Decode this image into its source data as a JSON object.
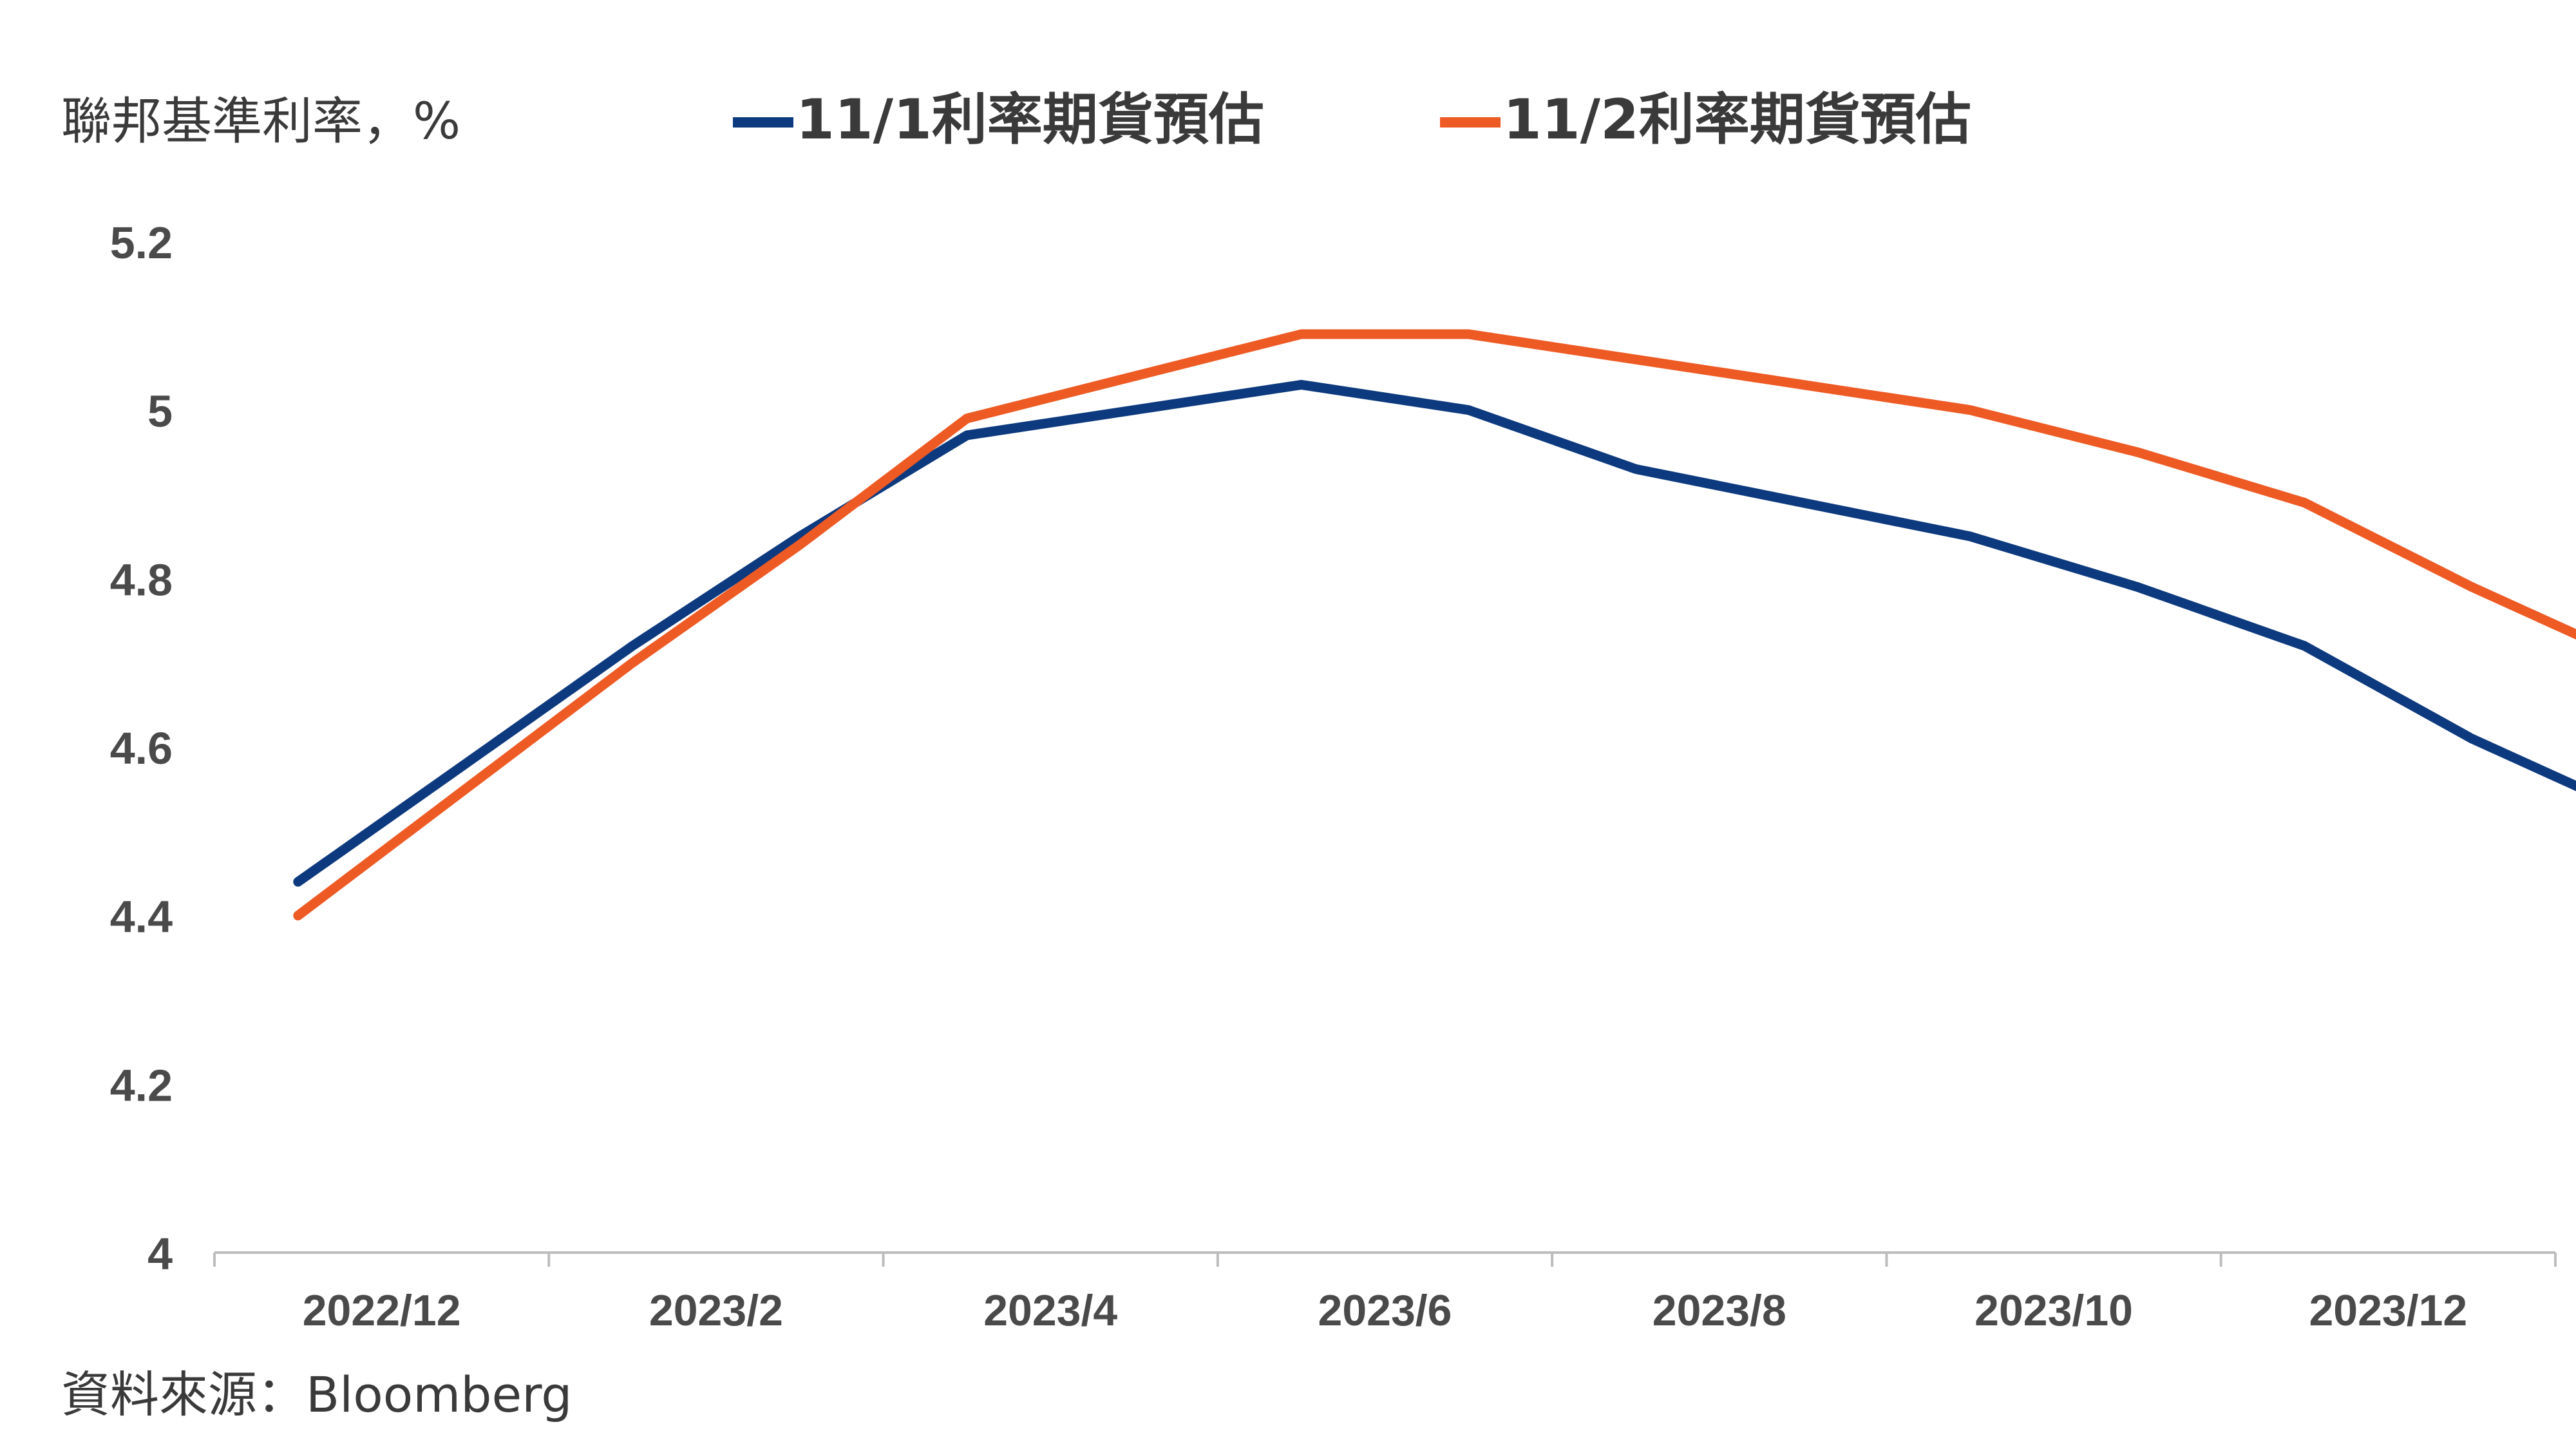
{
  "chart_data": {
    "type": "line",
    "ylabel": "聯邦基準利率，%",
    "source": "資料來源：Bloomberg",
    "ylim": [
      4,
      5.2
    ],
    "yticks": [
      "5.2",
      "5",
      "4.8",
      "4.6",
      "4.4",
      "4.2",
      "4"
    ],
    "xticks": [
      "2022/12",
      "2023/2",
      "2023/4",
      "2023/6",
      "2023/8",
      "2023/10",
      "2023/12"
    ],
    "grid": false,
    "legend_position": "top",
    "series": [
      {
        "name": "11/1利率期貨預估",
        "color": "#0d3a7e",
        "values": [
          4.44,
          4.58,
          4.72,
          4.85,
          4.97,
          5.0,
          5.03,
          5.0,
          4.93,
          4.89,
          4.85,
          4.79,
          4.72,
          4.61,
          4.52
        ]
      },
      {
        "name": "11/2利率期貨預估",
        "color": "#ee5a24",
        "values": [
          4.4,
          4.55,
          4.7,
          4.84,
          4.99,
          5.04,
          5.09,
          5.09,
          5.06,
          5.03,
          5.0,
          4.95,
          4.89,
          4.79,
          4.7
        ]
      }
    ]
  }
}
